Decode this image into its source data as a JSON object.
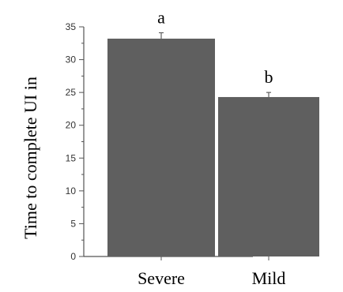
{
  "chart_data": {
    "type": "bar",
    "title": "",
    "xlabel": "",
    "ylabel": "Time to complete UI in",
    "categories": [
      "Severe",
      "Mild"
    ],
    "values": [
      33.2,
      24.3
    ],
    "errors": [
      0.9,
      0.7
    ],
    "significance": [
      "a",
      "b"
    ],
    "ylim": [
      0,
      35
    ],
    "yticks_major": [
      0,
      5,
      10,
      15,
      20,
      25,
      30,
      35
    ],
    "grid": false,
    "colors": {
      "bar": "#5f5f5f",
      "axis": "#555555",
      "text": "#000000"
    }
  }
}
